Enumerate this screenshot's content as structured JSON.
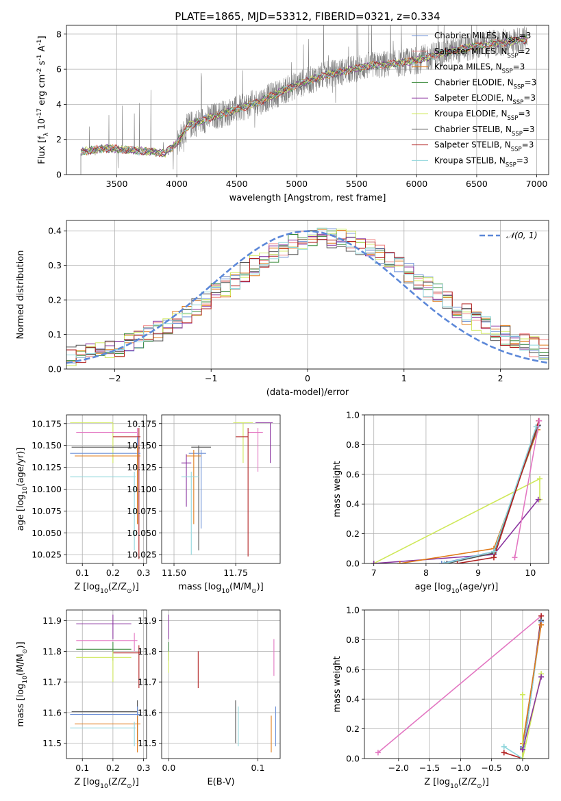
{
  "title": "PLATE=1865, MJD=53312, FIBERID=0321, z=0.334",
  "colors": {
    "chabrier_miles": "#6b8fd6",
    "salpeter_miles": "#f08080",
    "kroupa_miles": "#e07b1a",
    "chabrier_elodie": "#3a8a3a",
    "salpeter_elodie": "#8b35a0",
    "kroupa_elodie": "#cfe85a",
    "chabrier_stelib": "#555555",
    "salpeter_stelib": "#b22222",
    "kroupa_stelib": "#8fd6dc",
    "data": "#808080",
    "gauss": "#5b87d8",
    "pink": "#e377c2"
  },
  "chart_data": [
    {
      "id": "spectrum",
      "type": "line",
      "xlabel": "wavelength [Angstrom, rest frame]",
      "ylabel": "Flux [f$_λ$ 10$^{-17}$ erg cm$^{-2}$ s$^{-1}$ A$^{-1}$]",
      "xlim": [
        3080,
        7100
      ],
      "ylim": [
        0,
        8.5
      ],
      "xticks": [
        3500,
        4000,
        4500,
        5000,
        5500,
        6000,
        6500,
        7000
      ],
      "yticks": [
        0,
        2,
        4,
        6,
        8
      ],
      "continuum": {
        "x": [
          3200,
          3400,
          3600,
          3800,
          3900,
          4000,
          4100,
          4300,
          4500,
          4700,
          4900,
          5000,
          5200,
          5400,
          5600,
          5800,
          6000,
          6200,
          6400,
          6600,
          6800,
          6920
        ],
        "y": [
          1.3,
          1.5,
          1.4,
          1.3,
          1.2,
          1.8,
          2.8,
          3.3,
          3.7,
          4.2,
          4.8,
          5.1,
          5.6,
          5.9,
          6.2,
          6.3,
          6.5,
          6.9,
          7.2,
          7.4,
          7.6,
          7.7
        ]
      },
      "legend": [
        {
          "label": "Chabrier MILES, N",
          "sub": "SSP",
          "suffix": "=3"
        },
        {
          "label": "Salpeter MILES, N",
          "sub": "SSP",
          "suffix": "=2"
        },
        {
          "label": "Kroupa MILES, N",
          "sub": "SSP",
          "suffix": "=3"
        },
        {
          "label": "Chabrier ELODIE, N",
          "sub": "SSP",
          "suffix": "=3"
        },
        {
          "label": "Salpeter ELODIE, N",
          "sub": "SSP",
          "suffix": "=3"
        },
        {
          "label": "Kroupa ELODIE, N",
          "sub": "SSP",
          "suffix": "=3"
        },
        {
          "label": "Chabrier STELIB, N",
          "sub": "SSP",
          "suffix": "=3"
        },
        {
          "label": "Salpeter STELIB, N",
          "sub": "SSP",
          "suffix": "=3"
        },
        {
          "label": "Kroupa STELIB, N",
          "sub": "SSP",
          "suffix": "=3"
        }
      ]
    },
    {
      "id": "residuals",
      "type": "line",
      "xlabel": "(data-model)/error",
      "ylabel": "Normed distribution",
      "xlim": [
        -2.5,
        2.5
      ],
      "ylim": [
        0,
        0.43
      ],
      "xticks": [
        -2,
        -1,
        0,
        1,
        2
      ],
      "yticks": [
        0.0,
        0.1,
        0.2,
        0.3,
        0.4
      ],
      "gaussian_label": "𝒩(0, 1)",
      "bin_width": 0.1
    },
    {
      "id": "age-vs-Z",
      "type": "scatter",
      "xlabel": "Z [log$_{10}$(Z/Z$_⊙$)]",
      "ylabel": "age  [log$_{10}$(age/yr)]",
      "xlim": [
        0.048,
        0.31
      ],
      "ylim": [
        10.015,
        10.185
      ],
      "xticks": [
        0.1,
        0.2,
        0.3
      ],
      "yticks": [
        10.025,
        10.05,
        10.075,
        10.1,
        10.125,
        10.15,
        10.175
      ],
      "points": [
        {
          "c": "kroupa_elodie",
          "x": 0.2,
          "y": 10.176,
          "xl": 0.06,
          "xh": 0.2,
          "yl": 10.13,
          "yh": 10.176
        },
        {
          "c": "pink",
          "x": 0.28,
          "y": 10.165,
          "xl": 0.08,
          "xh": 0.28,
          "yl": 10.14,
          "yh": 10.17
        },
        {
          "c": "salpeter_stelib",
          "x": 0.285,
          "y": 10.16,
          "xl": 0.2,
          "xh": 0.29,
          "yl": 10.02,
          "yh": 10.17
        },
        {
          "c": "chabrier_stelib",
          "x": 0.28,
          "y": 10.148,
          "xl": 0.065,
          "xh": 0.28,
          "yl": 10.06,
          "yh": 10.15
        },
        {
          "c": "chabrier_miles",
          "x": 0.28,
          "y": 10.141,
          "xl": 0.06,
          "xh": 0.29,
          "yl": 10.12,
          "yh": 10.16
        },
        {
          "c": "kroupa_miles",
          "x": 0.28,
          "y": 10.138,
          "xl": 0.075,
          "xh": 0.29,
          "yl": 10.06,
          "yh": 10.15
        },
        {
          "c": "kroupa_stelib",
          "x": 0.27,
          "y": 10.114,
          "xl": 0.06,
          "xh": 0.275,
          "yl": 10.03,
          "yh": 10.12
        }
      ]
    },
    {
      "id": "age-vs-mass",
      "type": "scatter",
      "xlabel": "mass [log$_{10}$(M/M$_⊙$)]",
      "ylabel": "",
      "xlim": [
        11.45,
        11.93
      ],
      "ylim": [
        10.015,
        10.185
      ],
      "xticks": [
        11.5,
        11.75
      ],
      "yticks": [
        10.025,
        10.05,
        10.075,
        10.1,
        10.125,
        10.15,
        10.175
      ],
      "points": [
        {
          "c": "kroupa_elodie",
          "x": 11.78,
          "y": 10.176,
          "xl": 11.74,
          "xh": 11.82,
          "yl": 10.13,
          "yh": 10.176
        },
        {
          "c": "salpeter_elodie",
          "x": 11.89,
          "y": 10.176,
          "xl": 11.83,
          "xh": 11.9,
          "yl": 10.13,
          "yh": 10.176
        },
        {
          "c": "pink",
          "x": 11.84,
          "y": 10.165,
          "xl": 11.8,
          "xh": 11.86,
          "yl": 10.12,
          "yh": 10.17
        },
        {
          "c": "salpeter_stelib",
          "x": 11.8,
          "y": 10.16,
          "xl": 11.75,
          "xh": 11.8,
          "yl": 10.023,
          "yh": 10.17
        },
        {
          "c": "chabrier_stelib",
          "x": 11.6,
          "y": 10.148,
          "xl": 11.57,
          "xh": 11.65,
          "yl": 10.03,
          "yh": 10.15
        },
        {
          "c": "chabrier_miles",
          "x": 11.61,
          "y": 10.141,
          "xl": 11.56,
          "xh": 11.63,
          "yl": 10.055,
          "yh": 10.145
        },
        {
          "c": "kroupa_miles",
          "x": 11.58,
          "y": 10.138,
          "xl": 11.55,
          "xh": 11.61,
          "yl": 10.06,
          "yh": 10.145
        },
        {
          "c": "salpeter_elodie",
          "x": 11.55,
          "y": 10.13,
          "xl": 11.53,
          "xh": 11.57,
          "yl": 10.08,
          "yh": 10.14
        },
        {
          "c": "kroupa_stelib",
          "x": 11.57,
          "y": 10.114,
          "xl": 11.53,
          "xh": 11.6,
          "yl": 10.025,
          "yh": 10.12
        }
      ]
    },
    {
      "id": "mw-vs-age",
      "type": "line",
      "xlabel": "age  [log$_{10}$(age/yr)]",
      "ylabel": "mass weight",
      "xlim": [
        6.82,
        10.35
      ],
      "ylim": [
        0,
        1
      ],
      "xticks": [
        7,
        8,
        9,
        10
      ],
      "yticks": [
        0.0,
        0.2,
        0.4,
        0.6,
        0.8,
        1.0
      ],
      "series": [
        {
          "c": "kroupa_elodie",
          "x": [
            7.0,
            10.18,
            10.18
          ],
          "y": [
            0.0,
            0.57,
            0.43
          ]
        },
        {
          "c": "salpeter_elodie",
          "x": [
            7.0,
            9.3,
            10.15
          ],
          "y": [
            0.0,
            0.06,
            0.43
          ]
        },
        {
          "c": "kroupa_miles",
          "x": [
            7.5,
            9.3,
            10.14
          ],
          "y": [
            0.0,
            0.1,
            0.9
          ]
        },
        {
          "c": "chabrier_miles",
          "x": [
            8.3,
            9.3,
            10.14
          ],
          "y": [
            0.0,
            0.08,
            0.92
          ]
        },
        {
          "c": "chabrier_stelib",
          "x": [
            8.4,
            9.3,
            10.15
          ],
          "y": [
            0.0,
            0.07,
            0.93
          ]
        },
        {
          "c": "salpeter_stelib",
          "x": [
            8.6,
            9.3,
            10.16
          ],
          "y": [
            0.0,
            0.04,
            0.96
          ]
        },
        {
          "c": "kroupa_stelib",
          "x": [
            8.35,
            9.3,
            10.11
          ],
          "y": [
            0.0,
            0.08,
            0.92
          ]
        },
        {
          "c": "pink",
          "x": [
            9.7,
            10.17
          ],
          "y": [
            0.04,
            0.96
          ]
        }
      ]
    },
    {
      "id": "mass-vs-Z",
      "type": "scatter",
      "xlabel": "Z [log$_{10}$(Z/Z$_⊙$)]",
      "ylabel": "mass [log$_{10}$(M/M$_⊙$)]",
      "xlim": [
        0.048,
        0.31
      ],
      "ylim": [
        11.45,
        11.935
      ],
      "xticks": [
        0.1,
        0.2,
        0.3
      ],
      "yticks": [
        11.5,
        11.6,
        11.7,
        11.8,
        11.9
      ],
      "points": [
        {
          "c": "salpeter_elodie",
          "x": 0.2,
          "y": 11.89,
          "xl": 0.08,
          "xh": 0.26,
          "yl": 11.84,
          "yh": 11.92
        },
        {
          "c": "pink",
          "x": 0.27,
          "y": 11.835,
          "xl": 0.08,
          "xh": 0.28,
          "yl": 11.8,
          "yh": 11.86
        },
        {
          "c": "chabrier_elodie",
          "x": 0.2,
          "y": 11.807,
          "xl": 0.08,
          "xh": 0.26,
          "yl": 11.77,
          "yh": 11.83
        },
        {
          "c": "salpeter_stelib",
          "x": 0.285,
          "y": 11.795,
          "xl": 0.2,
          "xh": 0.29,
          "yl": 11.68,
          "yh": 11.82
        },
        {
          "c": "kroupa_elodie",
          "x": 0.2,
          "y": 11.78,
          "xl": 0.08,
          "xh": 0.26,
          "yl": 11.7,
          "yh": 11.8
        },
        {
          "c": "chabrier_stelib",
          "x": 0.28,
          "y": 11.603,
          "xl": 0.065,
          "xh": 0.28,
          "yl": 11.5,
          "yh": 11.64
        },
        {
          "c": "chabrier_miles",
          "x": 0.28,
          "y": 11.594,
          "xl": 0.06,
          "xh": 0.29,
          "yl": 11.52,
          "yh": 11.62
        },
        {
          "c": "kroupa_miles",
          "x": 0.28,
          "y": 11.563,
          "xl": 0.075,
          "xh": 0.29,
          "yl": 11.47,
          "yh": 11.59
        },
        {
          "c": "kroupa_stelib",
          "x": 0.27,
          "y": 11.55,
          "xl": 0.06,
          "xh": 0.275,
          "yl": 11.49,
          "yh": 11.57
        }
      ]
    },
    {
      "id": "mass-vs-EBV",
      "type": "scatter",
      "xlabel": "E(B-V)",
      "ylabel": "",
      "xlim": [
        -0.008,
        0.125
      ],
      "ylim": [
        11.45,
        11.935
      ],
      "xticks": [
        0.0,
        0.1
      ],
      "yticks": [
        11.5,
        11.6,
        11.7,
        11.8,
        11.9
      ],
      "points": [
        {
          "c": "salpeter_elodie",
          "x": 0.0,
          "y": 11.89,
          "yl": 11.84,
          "yh": 11.92
        },
        {
          "c": "chabrier_elodie",
          "x": 0.0,
          "y": 11.8,
          "yl": 11.77,
          "yh": 11.83
        },
        {
          "c": "kroupa_elodie",
          "x": 0.0,
          "y": 11.78,
          "yl": 11.73,
          "yh": 11.8
        },
        {
          "c": "salpeter_stelib",
          "x": 0.033,
          "y": 11.75,
          "yl": 11.68,
          "yh": 11.8
        },
        {
          "c": "pink",
          "x": 0.118,
          "y": 11.79,
          "yl": 11.72,
          "yh": 11.84
        },
        {
          "c": "chabrier_stelib",
          "x": 0.075,
          "y": 11.6,
          "yl": 11.5,
          "yh": 11.64
        },
        {
          "c": "kroupa_stelib",
          "x": 0.078,
          "y": 11.55,
          "yl": 11.49,
          "yh": 11.62
        },
        {
          "c": "kroupa_miles",
          "x": 0.115,
          "y": 11.56,
          "yl": 11.47,
          "yh": 11.59
        },
        {
          "c": "chabrier_miles",
          "x": 0.12,
          "y": 11.57,
          "yl": 11.49,
          "yh": 11.62
        }
      ]
    },
    {
      "id": "mw-vs-Z",
      "type": "line",
      "xlabel": "Z [log$_{10}$(Z/Z$_⊙$)]",
      "ylabel": "mass weight",
      "xlim": [
        -2.55,
        0.42
      ],
      "ylim": [
        0,
        1
      ],
      "xticks": [
        -2.0,
        -1.5,
        -1.0,
        -0.5,
        0.0
      ],
      "yticks": [
        0.0,
        0.2,
        0.4,
        0.6,
        0.8,
        1.0
      ],
      "series": [
        {
          "c": "pink",
          "x": [
            -2.33,
            0.3
          ],
          "y": [
            0.04,
            0.96
          ]
        },
        {
          "c": "salpeter_stelib",
          "x": [
            -0.3,
            0.0,
            0.3
          ],
          "y": [
            0.04,
            0.0,
            0.96
          ]
        },
        {
          "c": "chabrier_stelib",
          "x": [
            0.0,
            0.0,
            0.3
          ],
          "y": [
            0.07,
            0.0,
            0.93
          ]
        },
        {
          "c": "kroupa_stelib",
          "x": [
            -0.3,
            0.0,
            0.3
          ],
          "y": [
            0.08,
            0.0,
            0.92
          ]
        },
        {
          "c": "chabrier_miles",
          "x": [
            0.0,
            0.3
          ],
          "y": [
            0.08,
            0.92
          ]
        },
        {
          "c": "kroupa_miles",
          "x": [
            0.0,
            0.3
          ],
          "y": [
            0.1,
            0.9
          ]
        },
        {
          "c": "kroupa_elodie",
          "x": [
            0.0,
            0.0,
            0.3
          ],
          "y": [
            0.43,
            0.0,
            0.57
          ]
        },
        {
          "c": "salpeter_elodie",
          "x": [
            0.0,
            0.3
          ],
          "y": [
            0.06,
            0.55
          ]
        }
      ]
    }
  ]
}
